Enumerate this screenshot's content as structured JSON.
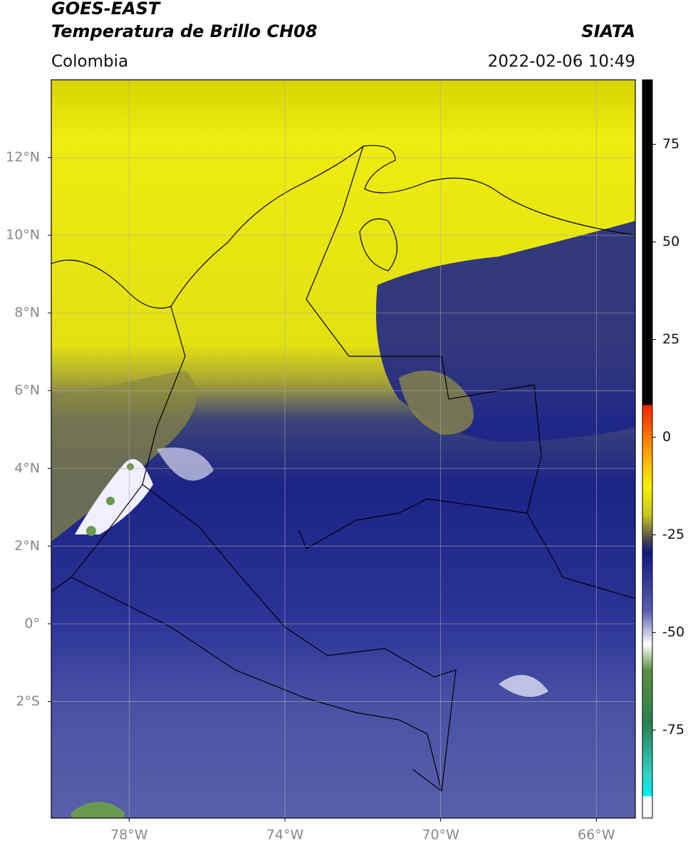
{
  "header": {
    "title": "GOES-EAST",
    "subtitle": "Temperatura de Brillo CH08",
    "source": "SIATA",
    "region": "Colombia",
    "datetime": "2022-02-06 10:49"
  },
  "map": {
    "xlim": [
      -80,
      -65
    ],
    "ylim": [
      -5,
      14
    ],
    "xticks": [
      {
        "value": -78,
        "label": "78°W"
      },
      {
        "value": -74,
        "label": "74°W"
      },
      {
        "value": -70,
        "label": "70°W"
      },
      {
        "value": -66,
        "label": "66°W"
      }
    ],
    "yticks": [
      {
        "value": 12,
        "label": "12°N"
      },
      {
        "value": 10,
        "label": "10°N"
      },
      {
        "value": 8,
        "label": "8°N"
      },
      {
        "value": 6,
        "label": "6°N"
      },
      {
        "value": 4,
        "label": "4°N"
      },
      {
        "value": 2,
        "label": "2°N"
      },
      {
        "value": 0,
        "label": "0°"
      },
      {
        "value": -2,
        "label": "2°S"
      }
    ],
    "grid": true
  },
  "colorbar": {
    "lim": [
      -97.5,
      91.5
    ],
    "ticks": [
      75,
      50,
      25,
      0,
      -25,
      -50,
      -75
    ]
  }
}
